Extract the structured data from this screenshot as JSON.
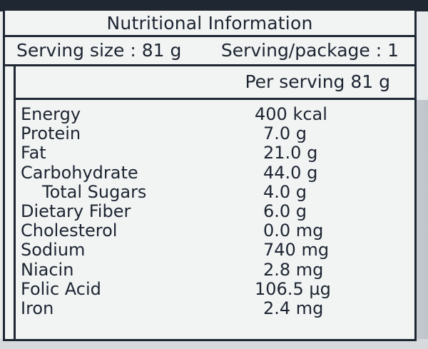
{
  "label": {
    "title": "Nutritional Information",
    "serving_size": "Serving size : 81 g",
    "serving_per_package": "Serving/package : 1",
    "per_serving_header": "Per serving 81 g",
    "nutrients": [
      {
        "name": "Energy",
        "value": "400 kcal",
        "indent": false
      },
      {
        "name": "Protein",
        "value": "7.0 g",
        "indent": false
      },
      {
        "name": "Fat",
        "value": "21.0 g",
        "indent": false
      },
      {
        "name": "Carbohydrate",
        "value": "44.0 g",
        "indent": false
      },
      {
        "name": "Total Sugars",
        "value": "4.0 g",
        "indent": true
      },
      {
        "name": "Dietary Fiber",
        "value": "6.0 g",
        "indent": false
      },
      {
        "name": "Cholesterol",
        "value": "0.0 mg",
        "indent": false
      },
      {
        "name": "Sodium",
        "value": "740 mg",
        "indent": false
      },
      {
        "name": "Niacin",
        "value": "2.8 mg",
        "indent": false
      },
      {
        "name": "Folic Acid",
        "value": "106.5 µg",
        "indent": false
      },
      {
        "name": "Iron",
        "value": "2.4 mg",
        "indent": false
      }
    ]
  },
  "colors": {
    "ink": "#1c2430",
    "border": "#1f2733",
    "paper": "#f2f4f4"
  }
}
